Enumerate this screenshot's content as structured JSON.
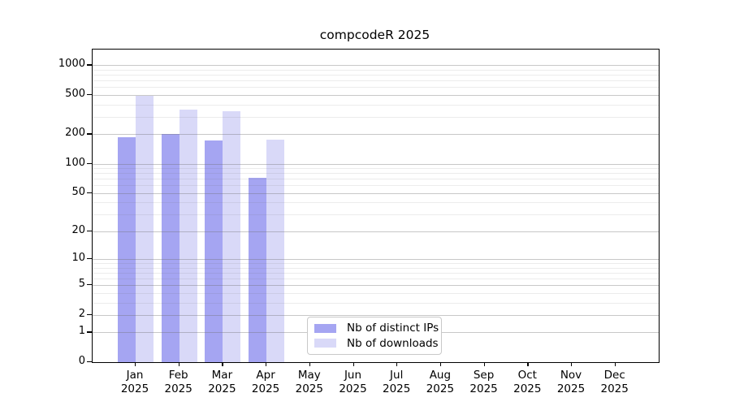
{
  "chart_data": {
    "type": "bar",
    "title": "compcodeR 2025",
    "scale": "log1p",
    "grid": "on",
    "categories": [
      "Jan",
      "Feb",
      "Mar",
      "Apr",
      "May",
      "Jun",
      "Jul",
      "Aug",
      "Sep",
      "Oct",
      "Nov",
      "Dec"
    ],
    "year": "2025",
    "y_ticks": [
      0,
      1,
      2,
      5,
      10,
      20,
      50,
      100,
      200,
      500,
      1000
    ],
    "y_minor_ticks": [
      3,
      4,
      6,
      7,
      8,
      9,
      30,
      40,
      60,
      70,
      80,
      90,
      300,
      400,
      600,
      700,
      800,
      900
    ],
    "ylim": [
      0,
      1440
    ],
    "xlabel": "",
    "ylabel": "",
    "legend_position": "lower center inside",
    "series": [
      {
        "name": "Nb of distinct IPs",
        "color": "#a5a5f2",
        "values": [
          185,
          200,
          173,
          72,
          null,
          null,
          null,
          null,
          null,
          null,
          null,
          null
        ]
      },
      {
        "name": "Nb of downloads",
        "color": "#d9d9f8",
        "values": [
          490,
          352,
          340,
          175,
          null,
          null,
          null,
          null,
          null,
          null,
          null,
          null
        ]
      }
    ]
  }
}
